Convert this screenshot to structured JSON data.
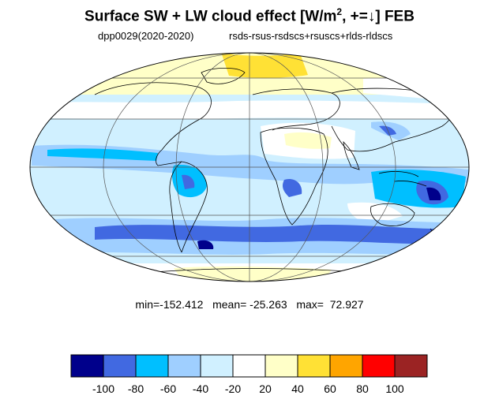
{
  "figure": {
    "title_main": "Surface SW + LW cloud effect [W/m",
    "title_sup": "2",
    "title_tail": ", +=↓]  FEB",
    "subtitle_left": "dpp0029(2020-2020)",
    "subtitle_right": "rsds-rsus-rsdscs+rsuscs+rlds-rldscs",
    "stats": "min=-152.412   mean= -25.263   max=  72.927"
  },
  "map": {
    "projection": "mollweide",
    "graticule": "30° lon × 30° lat",
    "coastlines": true,
    "units": "W/m2",
    "month": "FEB",
    "min": -152.412,
    "mean": -25.263,
    "max": 72.927
  },
  "colorbar": {
    "labels": [
      "-100",
      "-80",
      "-60",
      "-40",
      "-20",
      "20",
      "40",
      "60",
      "80",
      "100"
    ],
    "colors": [
      "#00008B",
      "#4169E1",
      "#00BFFF",
      "#9FCFFF",
      "#D0F0FF",
      "#FFFFFF",
      "#FFFFC8",
      "#FFE135",
      "#FFA500",
      "#FF0000",
      "#9B2323"
    ]
  }
}
